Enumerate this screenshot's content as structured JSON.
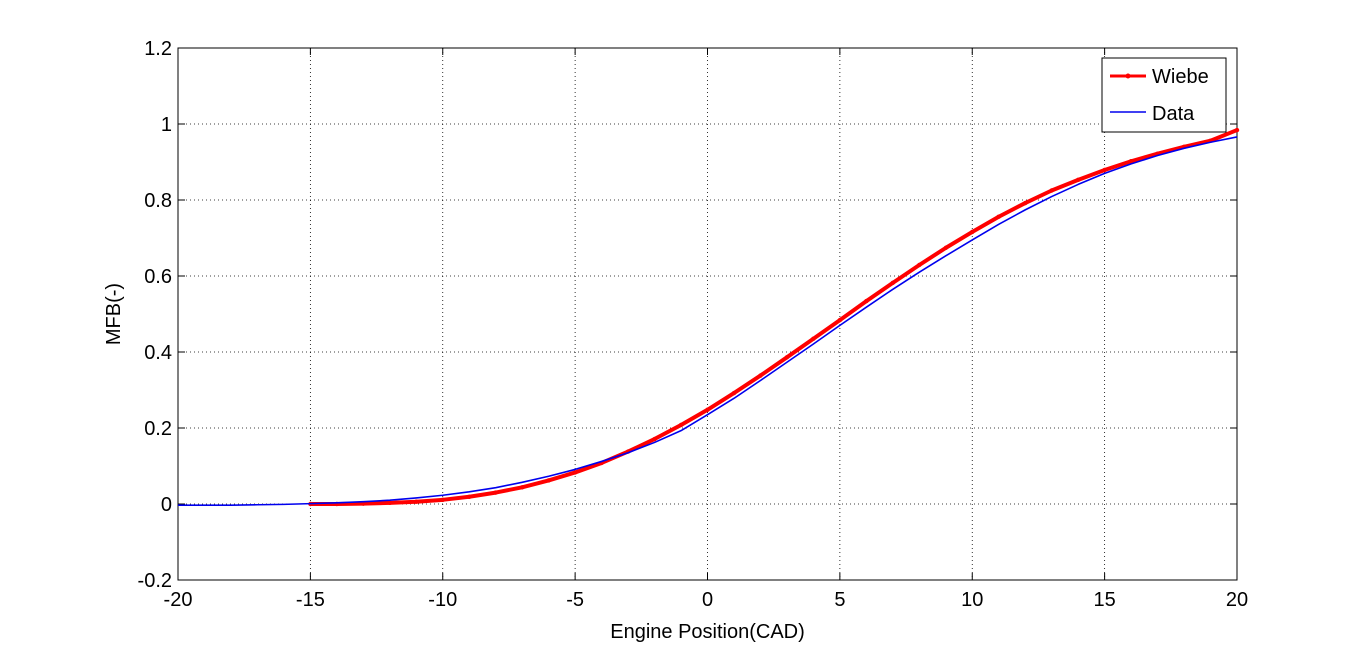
{
  "chart_data": {
    "type": "line",
    "title": "",
    "xlabel": "Engine Position(CAD)",
    "ylabel": "MFB(-)",
    "xlim": [
      -20,
      20
    ],
    "ylim": [
      -0.2,
      1.2
    ],
    "xticks": [
      -20,
      -15,
      -10,
      -5,
      0,
      5,
      10,
      15,
      20
    ],
    "xtick_labels": [
      "-20",
      "-15",
      "-10",
      "-5",
      "0",
      "5",
      "10",
      "15",
      "20"
    ],
    "yticks": [
      -0.2,
      0,
      0.2,
      0.4,
      0.6,
      0.8,
      1,
      1.2
    ],
    "ytick_labels": [
      "-0.2",
      "0",
      "0.2",
      "0.4",
      "0.6",
      "0.8",
      "1",
      "1.2"
    ],
    "grid": true,
    "legend_position": "top-right",
    "series": [
      {
        "name": "Wiebe",
        "color": "#ff0000",
        "marker": "dot",
        "x": [
          -15,
          -14,
          -13,
          -12,
          -11,
          -10,
          -9,
          -8,
          -7,
          -6,
          -5,
          -4,
          -3,
          -2,
          -1,
          0,
          1,
          2,
          3,
          4,
          5,
          6,
          7,
          8,
          9,
          10,
          11,
          12,
          13,
          14,
          15,
          16,
          17,
          18,
          19,
          20
        ],
        "y": [
          0.0,
          0.0,
          0.001,
          0.003,
          0.006,
          0.011,
          0.019,
          0.03,
          0.044,
          0.062,
          0.083,
          0.108,
          0.138,
          0.171,
          0.208,
          0.248,
          0.292,
          0.338,
          0.386,
          0.435,
          0.484,
          0.534,
          0.582,
          0.629,
          0.674,
          0.716,
          0.756,
          0.792,
          0.825,
          0.853,
          0.879,
          0.902,
          0.922,
          0.94,
          0.956,
          0.984
        ]
      },
      {
        "name": "Data",
        "color": "#0000ee",
        "marker": "none",
        "x": [
          -20,
          -19,
          -18,
          -17,
          -16,
          -15,
          -14,
          -13,
          -12,
          -11,
          -10,
          -9,
          -8,
          -7,
          -6,
          -5,
          -4,
          -3,
          -2,
          -1,
          0,
          1,
          2,
          3,
          4,
          5,
          6,
          7,
          8,
          9,
          10,
          11,
          12,
          13,
          14,
          15,
          16,
          17,
          18,
          19,
          20
        ],
        "y": [
          -0.003,
          -0.003,
          -0.003,
          -0.002,
          -0.001,
          0.001,
          0.003,
          0.006,
          0.01,
          0.016,
          0.023,
          0.032,
          0.043,
          0.057,
          0.073,
          0.091,
          0.112,
          0.135,
          0.162,
          0.193,
          0.235,
          0.278,
          0.325,
          0.373,
          0.421,
          0.47,
          0.518,
          0.565,
          0.61,
          0.653,
          0.695,
          0.736,
          0.774,
          0.809,
          0.841,
          0.87,
          0.895,
          0.917,
          0.936,
          0.952,
          0.966
        ]
      }
    ]
  }
}
